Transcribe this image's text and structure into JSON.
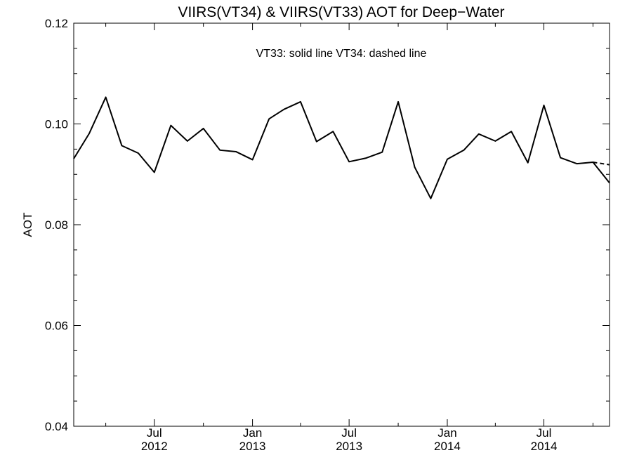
{
  "chart_data": {
    "type": "line",
    "title": "VIIRS(VT34) & VIIRS(VT33)  AOT for Deep−Water",
    "annotation": "VT33: solid line   VT34: dashed line",
    "ylabel": "AOT",
    "xlabel": "",
    "x_range": [
      "2012-02-01",
      "2014-11-01"
    ],
    "ylim": [
      0.04,
      0.12
    ],
    "y_ticks": [
      "0.04",
      "0.06",
      "0.08",
      "0.10",
      "0.12"
    ],
    "x_ticks": [
      {
        "date": "2012-07-01",
        "month": "Jul",
        "year": "2012"
      },
      {
        "date": "2013-01-01",
        "month": "Jan",
        "year": "2013"
      },
      {
        "date": "2013-07-01",
        "month": "Jul",
        "year": "2013"
      },
      {
        "date": "2014-01-01",
        "month": "Jan",
        "year": "2014"
      },
      {
        "date": "2014-07-01",
        "month": "Jul",
        "year": "2014"
      }
    ],
    "grid": false,
    "series": [
      {
        "name": "VT33",
        "style": "solid",
        "color": "#000000",
        "points": [
          [
            "2012-02-01",
            0.0931
          ],
          [
            "2012-03-01",
            0.0981
          ],
          [
            "2012-04-01",
            0.1053
          ],
          [
            "2012-05-01",
            0.0957
          ],
          [
            "2012-06-01",
            0.0942
          ],
          [
            "2012-07-01",
            0.0904
          ],
          [
            "2012-08-01",
            0.0997
          ],
          [
            "2012-09-01",
            0.0966
          ],
          [
            "2012-10-01",
            0.0991
          ],
          [
            "2012-11-01",
            0.0948
          ],
          [
            "2012-12-01",
            0.0945
          ],
          [
            "2013-01-01",
            0.0929
          ],
          [
            "2013-02-01",
            0.101
          ],
          [
            "2013-03-01",
            0.1029
          ],
          [
            "2013-04-01",
            0.1044
          ],
          [
            "2013-05-01",
            0.0965
          ],
          [
            "2013-06-01",
            0.0985
          ],
          [
            "2013-07-01",
            0.0925
          ],
          [
            "2013-08-01",
            0.0932
          ],
          [
            "2013-09-01",
            0.0944
          ],
          [
            "2013-10-01",
            0.1044
          ],
          [
            "2013-11-01",
            0.0914
          ],
          [
            "2013-12-01",
            0.0852
          ],
          [
            "2014-01-01",
            0.093
          ],
          [
            "2014-02-01",
            0.0948
          ],
          [
            "2014-03-01",
            0.098
          ],
          [
            "2014-04-01",
            0.0966
          ],
          [
            "2014-05-01",
            0.0985
          ],
          [
            "2014-06-01",
            0.0923
          ],
          [
            "2014-07-01",
            0.1037
          ],
          [
            "2014-08-01",
            0.0933
          ],
          [
            "2014-09-01",
            0.0921
          ],
          [
            "2014-10-01",
            0.0924
          ],
          [
            "2014-11-01",
            0.0883
          ]
        ]
      },
      {
        "name": "VT34",
        "style": "dashed",
        "color": "#000000",
        "points": [
          [
            "2014-10-01",
            0.0924
          ],
          [
            "2014-11-01",
            0.0919
          ]
        ]
      }
    ]
  }
}
